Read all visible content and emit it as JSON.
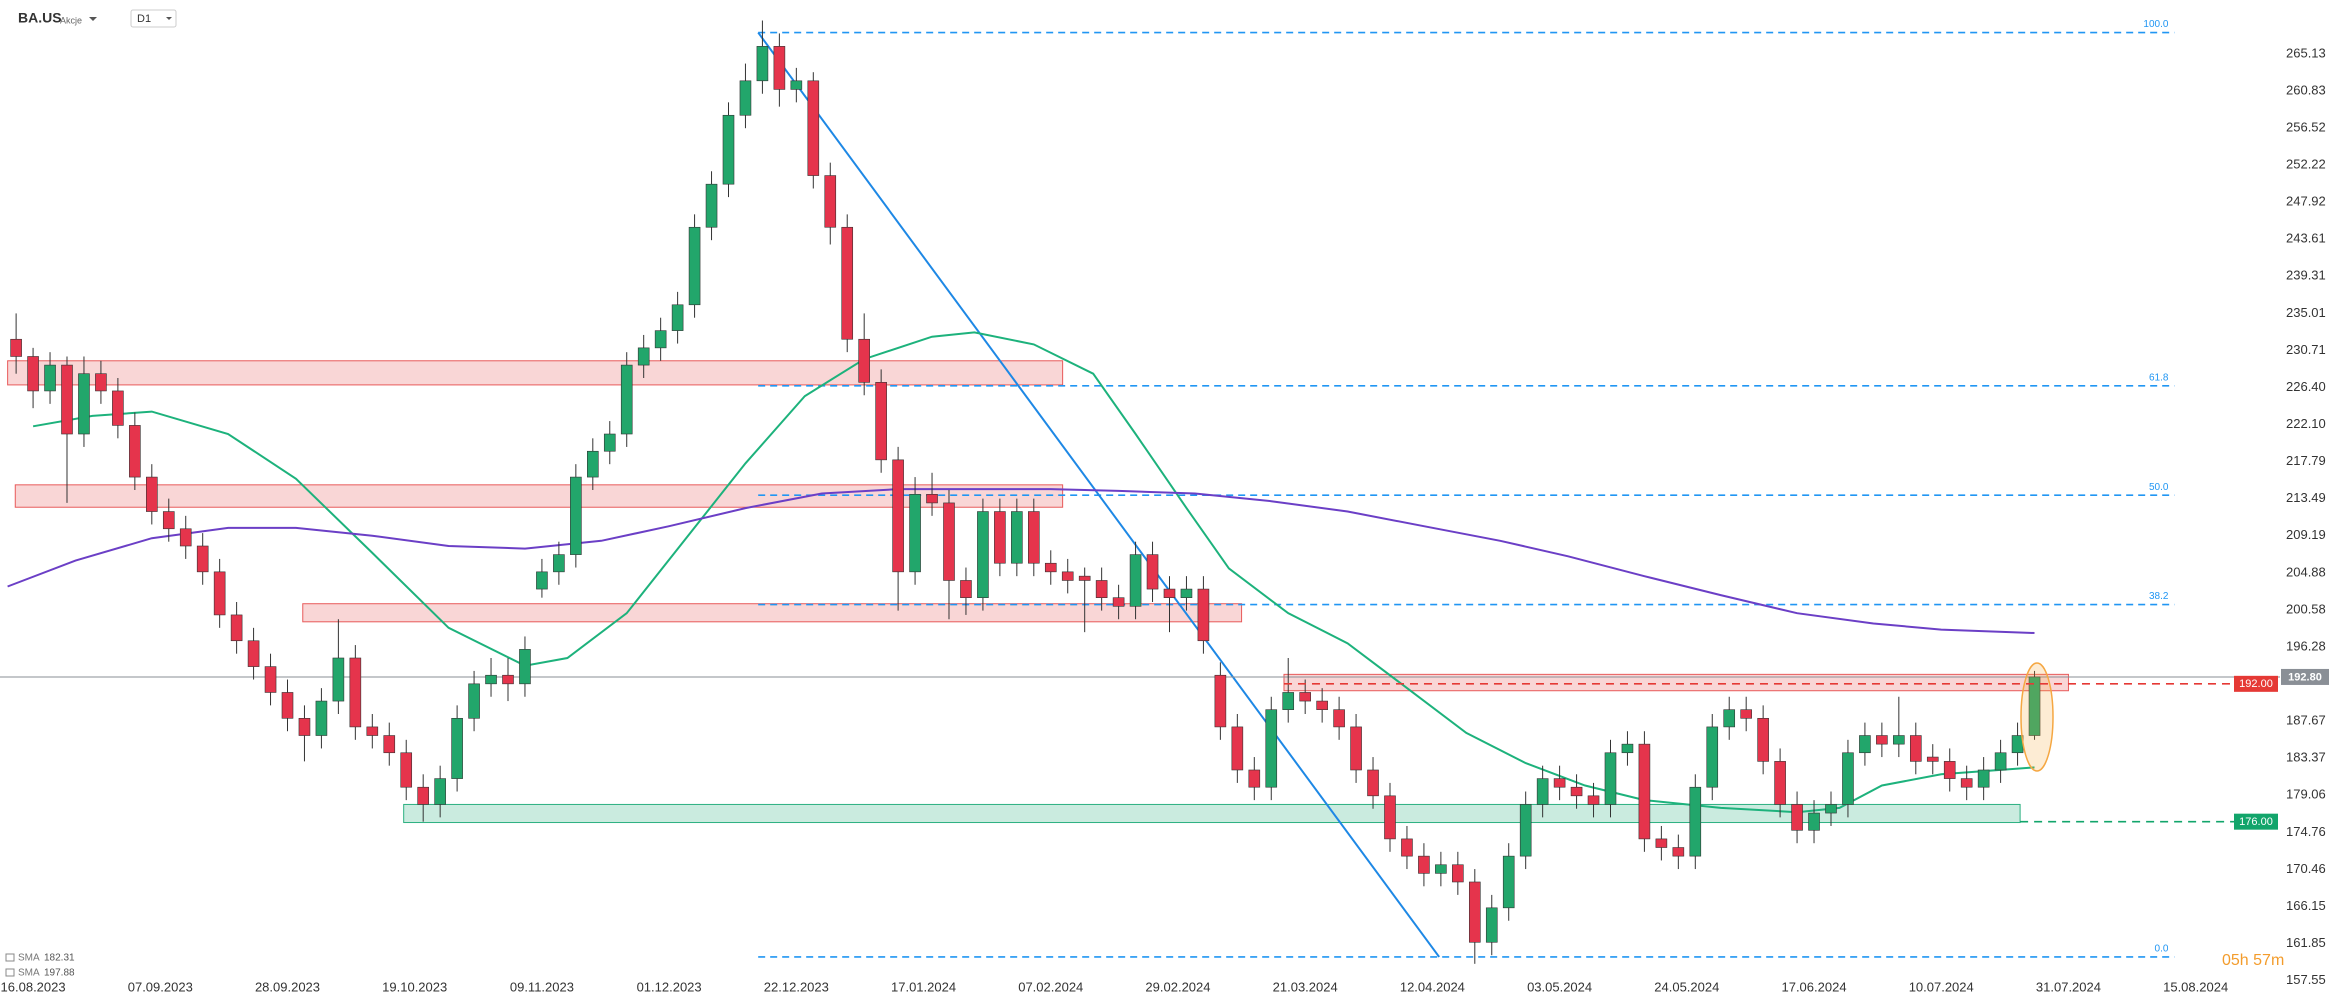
{
  "chart_data": {
    "type": "candlestick",
    "symbol": "BA.US",
    "asset_class": "Akcje",
    "timeframe": "D1",
    "countdown": "05h 57m",
    "xlim": [
      -3.9,
      260.7
    ],
    "ylim": [
      158.55,
      271.38
    ],
    "yticks": [
      265.13,
      260.83,
      256.52,
      252.22,
      247.92,
      243.61,
      239.31,
      235.01,
      230.71,
      {
        "value": 226.4,
        "label": "226.40"
      },
      {
        "value": 222.1,
        "label": "222.10"
      },
      217.79,
      213.49,
      209.19,
      204.88,
      200.58,
      196.28,
      187.67,
      183.37,
      179.06,
      174.76,
      170.46,
      166.15,
      161.85,
      157.55
    ],
    "xticks": [
      {
        "value": 0,
        "label": "16.08.2023"
      },
      {
        "value": 15,
        "label": "07.09.2023"
      },
      {
        "value": 30,
        "label": "28.09.2023"
      },
      {
        "value": 45,
        "label": "19.10.2023"
      },
      {
        "value": 60,
        "label": "09.11.2023"
      },
      {
        "value": 75,
        "label": "01.12.2023"
      },
      {
        "value": 90,
        "label": "22.12.2023"
      },
      {
        "value": 105,
        "label": "17.01.2024"
      },
      {
        "value": 120,
        "label": "07.02.2024"
      },
      {
        "value": 135,
        "label": "29.02.2024"
      },
      {
        "value": 150,
        "label": "21.03.2024"
      },
      {
        "value": 165,
        "label": "12.04.2024"
      },
      {
        "value": 180,
        "label": "03.05.2024"
      },
      {
        "value": 195,
        "label": "24.05.2024"
      },
      {
        "value": 210,
        "label": "17.06.2024"
      },
      {
        "value": 225,
        "label": "10.07.2024"
      },
      {
        "value": 240,
        "label": "31.07.2024"
      },
      {
        "value": 255,
        "label": "15.08.2024"
      }
    ],
    "up_color": "#22a66b",
    "down_color": "#e5344c",
    "x": [
      -2,
      0,
      2,
      4,
      6,
      8,
      10,
      12,
      14,
      16,
      18,
      20,
      22,
      24,
      26,
      28,
      30,
      32,
      34,
      36,
      38,
      40,
      42,
      44,
      46,
      48,
      50,
      52,
      54,
      56,
      58,
      60,
      62,
      64,
      66,
      68,
      70,
      72,
      74,
      76,
      78,
      80,
      82,
      84,
      86,
      88,
      90,
      92,
      94,
      96,
      98,
      100,
      102,
      104,
      106,
      108,
      110,
      112,
      114,
      116,
      118,
      120,
      122,
      124,
      126,
      128,
      130,
      132,
      134,
      136,
      138,
      140,
      142,
      144,
      146,
      148,
      150,
      152,
      154,
      156,
      158,
      160,
      162,
      164,
      166,
      168,
      170,
      172,
      174,
      176,
      178,
      180,
      182,
      184,
      186,
      188,
      190,
      192,
      194,
      196,
      198,
      200,
      202,
      204,
      206,
      208,
      210,
      212,
      214,
      216,
      218,
      220,
      222,
      224,
      226,
      228,
      230,
      232,
      234,
      236
    ],
    "ohlc": [
      [
        232,
        235,
        228,
        230
      ],
      [
        230,
        231,
        224,
        226
      ],
      [
        226,
        230.5,
        224.5,
        229
      ],
      [
        229,
        230,
        213,
        221
      ],
      [
        221,
        230,
        219.5,
        228
      ],
      [
        228,
        229.5,
        224.5,
        226
      ],
      [
        226,
        227.5,
        220.5,
        222
      ],
      [
        222,
        223.5,
        214.5,
        216
      ],
      [
        216,
        217.5,
        210.5,
        212
      ],
      [
        212,
        213.5,
        208.5,
        210
      ],
      [
        210,
        211.5,
        206.5,
        208
      ],
      [
        208,
        209.5,
        203.5,
        205
      ],
      [
        205,
        206.5,
        198.5,
        200
      ],
      [
        200,
        201.5,
        195.5,
        197
      ],
      [
        197,
        198.5,
        192.5,
        194
      ],
      [
        194,
        195.5,
        189.5,
        191
      ],
      [
        191,
        192.5,
        186.5,
        188
      ],
      [
        188,
        189.5,
        183,
        186
      ],
      [
        186,
        191.5,
        184.5,
        190
      ],
      [
        190,
        199.5,
        188.5,
        195
      ],
      [
        195,
        196.5,
        185.5,
        187
      ],
      [
        187,
        188.5,
        184.5,
        186
      ],
      [
        186,
        187.5,
        182.5,
        184
      ],
      [
        184,
        185.5,
        178.5,
        180
      ],
      [
        180,
        181.5,
        176,
        178
      ],
      [
        178,
        182.5,
        176.5,
        181
      ],
      [
        181,
        189.5,
        179.5,
        188
      ],
      [
        188,
        193.5,
        186.5,
        192
      ],
      [
        192,
        195,
        190.5,
        193
      ],
      [
        193,
        195,
        190,
        192
      ],
      [
        192,
        197.5,
        190.5,
        196
      ],
      [
        203,
        206.5,
        202,
        205
      ],
      [
        205,
        208.5,
        203.5,
        207
      ],
      [
        207,
        217.5,
        205.5,
        216
      ],
      [
        216,
        220.5,
        214.5,
        219
      ],
      [
        219,
        222.5,
        217.5,
        221
      ],
      [
        221,
        230.5,
        219.5,
        229
      ],
      [
        229,
        232.5,
        227.5,
        231
      ],
      [
        231,
        234.5,
        229.5,
        233
      ],
      [
        233,
        237.5,
        231.5,
        236
      ],
      [
        236,
        246.5,
        234.5,
        245
      ],
      [
        245,
        251.5,
        243.5,
        250
      ],
      [
        250,
        259.5,
        248.5,
        258
      ],
      [
        258,
        264,
        256.5,
        262
      ],
      [
        262,
        269,
        260.5,
        266
      ],
      [
        266,
        267.5,
        259,
        261
      ],
      [
        261,
        263.5,
        259.5,
        262
      ],
      [
        262,
        263,
        249.5,
        251
      ],
      [
        251,
        252.5,
        243,
        245
      ],
      [
        245,
        246.5,
        230.5,
        232
      ],
      [
        232,
        235,
        225.5,
        227
      ],
      [
        227,
        228.5,
        216.5,
        218
      ],
      [
        218,
        219.5,
        200.5,
        205
      ],
      [
        205,
        216,
        203.5,
        214
      ],
      [
        214,
        216.5,
        211.5,
        213
      ],
      [
        213,
        214.5,
        199.5,
        204
      ],
      [
        204,
        205.5,
        200,
        202
      ],
      [
        202,
        213.5,
        200.5,
        212
      ],
      [
        212,
        213.5,
        204.5,
        206
      ],
      [
        206,
        213.5,
        204.5,
        212
      ],
      [
        212,
        213.5,
        204.5,
        206
      ],
      [
        206,
        207.5,
        203.5,
        205
      ],
      [
        205,
        206.5,
        202.5,
        204
      ],
      [
        204.5,
        205.5,
        198,
        204
      ],
      [
        204,
        205.5,
        200.5,
        202
      ],
      [
        202,
        203.5,
        199.5,
        201
      ],
      [
        201,
        208.5,
        199.5,
        207
      ],
      [
        207,
        208.5,
        201.5,
        203
      ],
      [
        203,
        204.5,
        198,
        202
      ],
      [
        202,
        204.5,
        200.5,
        203
      ],
      [
        203,
        204.5,
        195.5,
        197
      ],
      [
        193,
        194.5,
        185.5,
        187
      ],
      [
        187,
        188.5,
        180.5,
        182
      ],
      [
        182,
        183.5,
        178.5,
        180
      ],
      [
        180,
        190.5,
        178.5,
        189
      ],
      [
        189,
        195,
        187.5,
        191
      ],
      [
        191,
        192.5,
        188.5,
        190
      ],
      [
        190,
        191.5,
        187.5,
        189
      ],
      [
        189,
        190.5,
        185.5,
        187
      ],
      [
        187,
        188.5,
        180.5,
        182
      ],
      [
        182,
        183.5,
        177.5,
        179
      ],
      [
        179,
        180.5,
        172.5,
        174
      ],
      [
        174,
        175.5,
        170.5,
        172
      ],
      [
        172,
        173.5,
        168.5,
        170
      ],
      [
        170,
        172.5,
        168.5,
        171
      ],
      [
        171,
        172.5,
        167.5,
        169
      ],
      [
        169,
        170.5,
        159.5,
        162
      ],
      [
        162,
        167.5,
        160.5,
        166
      ],
      [
        166,
        173.5,
        164.5,
        172
      ],
      [
        172,
        179.5,
        170.5,
        178
      ],
      [
        178,
        182.5,
        176.5,
        181
      ],
      [
        181,
        182.5,
        178.5,
        180
      ],
      [
        180,
        181.5,
        177.5,
        179
      ],
      [
        179,
        180.5,
        176.5,
        178
      ],
      [
        178,
        185.5,
        176.5,
        184
      ],
      [
        184,
        186.5,
        182.5,
        185
      ],
      [
        185,
        186.5,
        172.5,
        174
      ],
      [
        174,
        175.5,
        171.5,
        173
      ],
      [
        173,
        174.5,
        170.5,
        172
      ],
      [
        172,
        181.5,
        170.5,
        180
      ],
      [
        180,
        188.5,
        178.5,
        187
      ],
      [
        187,
        190.5,
        185.5,
        189
      ],
      [
        189,
        190.5,
        186.5,
        188
      ],
      [
        188,
        189.5,
        181.5,
        183
      ],
      [
        183,
        184.5,
        176.5,
        178
      ],
      [
        178,
        179.5,
        173.5,
        175
      ],
      [
        175,
        178.5,
        173.5,
        177
      ],
      [
        177,
        179.5,
        175.5,
        178
      ],
      [
        178,
        185.5,
        176.5,
        184
      ],
      [
        184,
        187.5,
        182.5,
        186
      ],
      [
        186,
        187.5,
        183.5,
        185
      ],
      [
        185,
        190.5,
        183.5,
        186
      ],
      [
        186,
        187.5,
        181.5,
        183
      ],
      [
        183.5,
        185,
        181.5,
        183
      ],
      [
        183,
        184.5,
        179.5,
        181
      ],
      [
        181,
        182.5,
        178.5,
        180
      ],
      [
        180,
        183.5,
        178.5,
        182
      ],
      [
        182,
        185.5,
        180.5,
        184
      ],
      [
        184,
        187.5,
        182.5,
        186
      ],
      [
        186,
        193.5,
        185.5,
        192.8
      ]
    ],
    "series": [
      {
        "name": "SMA",
        "last": 182.31,
        "color": "#1db27c",
        "x": [
          0,
          7,
          14,
          23,
          31,
          40,
          49,
          58,
          63,
          70,
          77,
          84,
          91,
          98,
          106,
          111,
          118,
          125,
          130,
          136,
          141,
          148,
          155,
          162,
          169,
          176,
          183,
          190,
          199,
          208,
          213,
          218,
          225,
          236
        ],
        "values": [
          221.9,
          223.1,
          223.6,
          221.0,
          215.8,
          207.2,
          198.5,
          194.1,
          195.0,
          200.2,
          208.9,
          217.6,
          225.4,
          229.7,
          232.3,
          232.8,
          231.4,
          228.0,
          221.0,
          212.4,
          205.4,
          200.2,
          196.7,
          191.5,
          186.3,
          182.8,
          180.2,
          178.5,
          177.6,
          177.1,
          177.6,
          180.2,
          181.5,
          182.3
        ]
      },
      {
        "name": "SMA",
        "last": 197.88,
        "color": "#6b3fc6",
        "x": [
          -3,
          5,
          14,
          23,
          31,
          40,
          49,
          58,
          67,
          75,
          84,
          93,
          102,
          111,
          120,
          128,
          137,
          146,
          155,
          164,
          173,
          181,
          190,
          199,
          208,
          217,
          225,
          236
        ],
        "values": [
          203.3,
          206.3,
          208.9,
          210.1,
          210.1,
          209.2,
          208.0,
          207.7,
          208.6,
          210.3,
          212.4,
          214.1,
          214.6,
          214.6,
          214.6,
          214.4,
          214.1,
          213.2,
          212.0,
          210.3,
          208.6,
          206.8,
          204.5,
          202.3,
          200.2,
          199.0,
          198.3,
          197.9
        ]
      }
    ],
    "zones": [
      {
        "x": [
          -3,
          121.4
        ],
        "y": [
          229.5,
          226.7
        ],
        "color": "#e85a5a"
      },
      {
        "x": [
          -2.1,
          121.4
        ],
        "y": [
          215.1,
          212.5
        ],
        "color": "#e85a5a"
      },
      {
        "x": [
          31.8,
          142.5
        ],
        "y": [
          201.3,
          199.2
        ],
        "color": "#e85a5a"
      },
      {
        "x": [
          147.5,
          240
        ],
        "y": [
          193.1,
          191.2
        ],
        "color": "#e85a5a"
      },
      {
        "x": [
          43.7,
          234.3
        ],
        "y": [
          178.0,
          175.9
        ],
        "color": "#2bb080"
      }
    ],
    "fibonacci": {
      "color": "#2196f3",
      "x": [
        85.5,
        252.5
      ],
      "levels": [
        {
          "value": 100,
          "label": "100.0",
          "price": 267.6
        },
        {
          "value": 61.8,
          "price": 226.6
        },
        {
          "value": 50,
          "label": "50.0",
          "price": 213.9
        },
        {
          "value": 38.2,
          "price": 201.2
        },
        {
          "value": 0,
          "label": "0.0",
          "price": 160.3
        }
      ]
    },
    "trendline": {
      "x": [
        85.5,
        165.8
      ],
      "y": [
        267.6,
        160.3
      ],
      "color": "#1e88e5"
    },
    "levels": [
      {
        "value": 192,
        "label": "192.00",
        "color": "#e53935"
      },
      {
        "value": 176,
        "label": "176.00",
        "color": "#12a56b"
      }
    ],
    "last_price": {
      "value": 192.8,
      "label": "192.80",
      "color": "#8a8f96"
    }
  }
}
